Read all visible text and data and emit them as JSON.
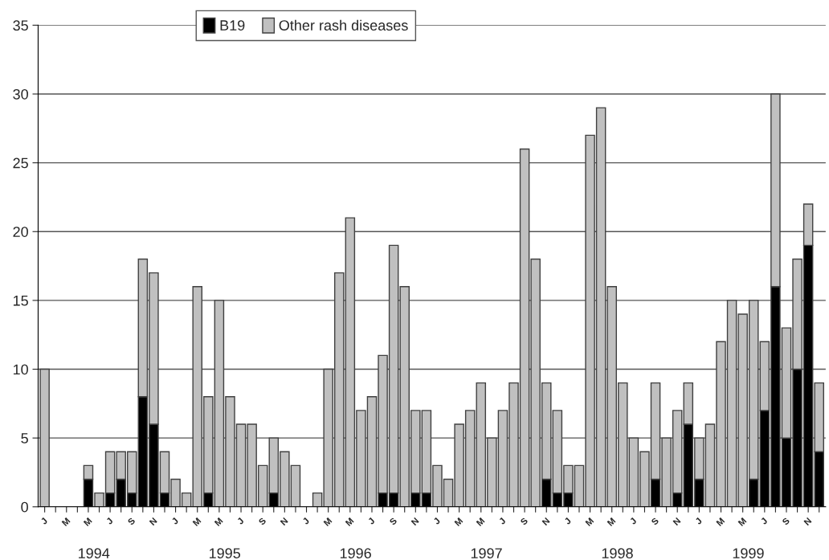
{
  "chart_data": {
    "type": "bar",
    "stacked": true,
    "categories": [
      "J",
      null,
      "M",
      null,
      "M",
      null,
      "J",
      null,
      "S",
      null,
      "N",
      null,
      "J",
      null,
      "M",
      null,
      "M",
      null,
      "J",
      null,
      "S",
      null,
      "N",
      null,
      "J",
      null,
      "M",
      null,
      "M",
      null,
      "J",
      null,
      "S",
      null,
      "N",
      null,
      "J",
      null,
      "M",
      null,
      "M",
      null,
      "J",
      null,
      "S",
      null,
      "N",
      null,
      "J",
      null,
      "M",
      null,
      "M",
      null,
      "J",
      null,
      "S",
      null,
      "N",
      null,
      "J",
      null,
      "M",
      null,
      "M",
      null,
      "J",
      null,
      "S",
      null,
      "N",
      null
    ],
    "series": [
      {
        "name": "B19",
        "color": "#000000",
        "values": [
          0,
          0,
          0,
          0,
          2,
          0,
          1,
          2,
          1,
          8,
          6,
          1,
          0,
          0,
          0,
          1,
          0,
          0,
          0,
          0,
          0,
          1,
          0,
          0,
          0,
          0,
          0,
          0,
          0,
          0,
          0,
          1,
          1,
          0,
          1,
          1,
          0,
          0,
          0,
          0,
          0,
          0,
          0,
          0,
          0,
          0,
          2,
          1,
          1,
          0,
          0,
          0,
          0,
          0,
          0,
          0,
          2,
          0,
          1,
          6,
          2,
          0,
          0,
          0,
          0,
          2,
          7,
          16,
          5,
          10,
          19,
          4
        ]
      },
      {
        "name": "Other rash diseases",
        "color": "#c0c0c0",
        "values": [
          10,
          0,
          0,
          0,
          1,
          1,
          3,
          2,
          3,
          10,
          11,
          3,
          2,
          1,
          16,
          7,
          15,
          8,
          6,
          6,
          3,
          4,
          4,
          3,
          0,
          1,
          10,
          17,
          21,
          7,
          8,
          10,
          18,
          16,
          6,
          6,
          3,
          2,
          6,
          7,
          9,
          5,
          7,
          9,
          26,
          18,
          7,
          6,
          2,
          3,
          27,
          29,
          16,
          9,
          5,
          4,
          7,
          5,
          6,
          3,
          3,
          6,
          12,
          15,
          14,
          13,
          5,
          14,
          8,
          8,
          3,
          5
        ]
      }
    ],
    "annotations": [
      "1994",
      "1995",
      "1996",
      "1997",
      "1998",
      "1999"
    ],
    "ylim": [
      0,
      35
    ],
    "yticks": [
      0,
      5,
      10,
      15,
      20,
      25,
      30,
      35
    ],
    "grid": "y",
    "legend": "top"
  }
}
